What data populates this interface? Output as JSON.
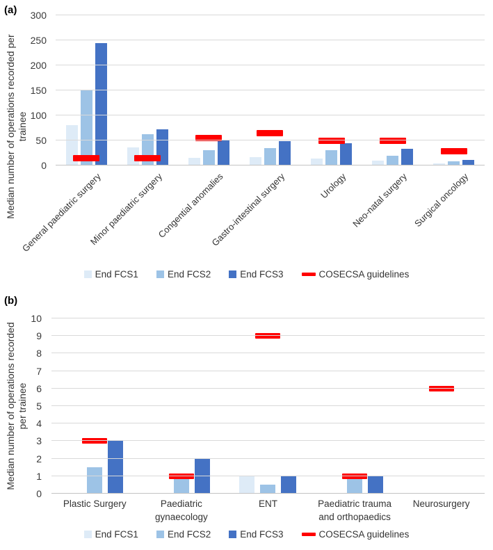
{
  "legend": {
    "items": [
      {
        "label": "End FCS1",
        "color": "#DEEBF7",
        "type": "square"
      },
      {
        "label": "End FCS2",
        "color": "#9DC3E6",
        "type": "square"
      },
      {
        "label": "End FCS3",
        "color": "#4472C4",
        "type": "square"
      },
      {
        "label": "COSECSA guidelines",
        "color": "#FF0000",
        "type": "dash"
      }
    ]
  },
  "chart_data": [
    {
      "id": "a",
      "panel_label": "(a)",
      "type": "bar",
      "title": "",
      "xlabel": "",
      "ylabel": "Median number of operations recorded per\ntrainee",
      "ylim": [
        0,
        300
      ],
      "ytick_step": 50,
      "grid": true,
      "legend_position": "bottom",
      "categories": [
        "General paediatric surgery",
        "Minor paediatric surgery",
        "Congential anomalies",
        "Gastro-intestinal surgery",
        "Urology",
        "Neo-natal surgery",
        "Surgical oncology"
      ],
      "series": [
        {
          "name": "End FCS1",
          "color": "#DEEBF7",
          "values": [
            80,
            36,
            15,
            16,
            14,
            10,
            4
          ]
        },
        {
          "name": "End FCS2",
          "color": "#9DC3E6",
          "values": [
            150,
            62,
            30,
            35,
            31,
            20,
            8
          ]
        },
        {
          "name": "End FCS3",
          "color": "#4472C4",
          "values": [
            244,
            72,
            52,
            49,
            44,
            33,
            11
          ]
        },
        {
          "name": "COSECSA guidelines",
          "type": "guideline",
          "color": "#FF0000",
          "values": [
            15,
            15,
            55,
            65,
            50,
            50,
            28
          ]
        }
      ]
    },
    {
      "id": "b",
      "panel_label": "(b)",
      "type": "bar",
      "title": "",
      "xlabel": "",
      "ylabel": "Median number of operations recorded\nper trainee",
      "ylim": [
        0,
        10
      ],
      "ytick_step": 1,
      "grid": true,
      "legend_position": "bottom",
      "categories": [
        "Plastic Surgery",
        "Paediatric\ngynaecology",
        "ENT",
        "Paediatric trauma\nand orthopaedics",
        "Neurosurgery"
      ],
      "series": [
        {
          "name": "End FCS1",
          "color": "#DEEBF7",
          "values": [
            0,
            0,
            1,
            0,
            0
          ]
        },
        {
          "name": "End FCS2",
          "color": "#9DC3E6",
          "values": [
            1.5,
            1,
            0.5,
            1,
            0
          ]
        },
        {
          "name": "End FCS3",
          "color": "#4472C4",
          "values": [
            3,
            2,
            1,
            1,
            0
          ]
        },
        {
          "name": "COSECSA guidelines",
          "type": "guideline",
          "color": "#FF0000",
          "values": [
            3,
            1,
            9,
            1,
            6
          ]
        }
      ]
    }
  ]
}
